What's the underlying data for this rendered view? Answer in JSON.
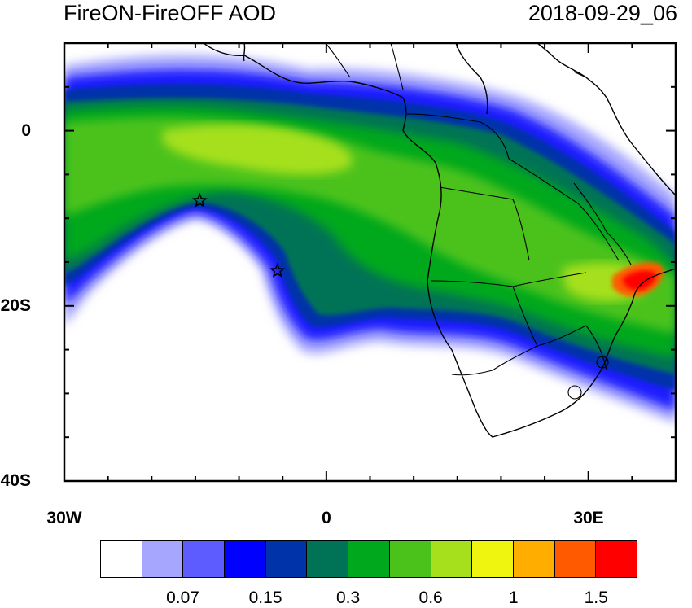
{
  "title_left": "FireON-FireOFF AOD",
  "title_right": "2018-09-29_06",
  "x_axis": {
    "labels": [
      "30W",
      "0",
      "30E"
    ],
    "values": [
      -30,
      0,
      30
    ],
    "range": [
      -30,
      40
    ]
  },
  "y_axis": {
    "labels": [
      "0",
      "20S",
      "40S"
    ],
    "values": [
      0,
      -20,
      -40
    ],
    "range": [
      -40,
      10
    ]
  },
  "colorbar": {
    "colors": [
      "#ffffff",
      "#a6a6ff",
      "#5c5cff",
      "#0000ff",
      "#0033aa",
      "#007357",
      "#00a81e",
      "#4bc21b",
      "#a6e01c",
      "#f0f50f",
      "#ffae00",
      "#ff5a00",
      "#ff0000"
    ],
    "labels": [
      "0.07",
      "0.15",
      "0.3",
      "0.6",
      "1",
      "1.5"
    ],
    "label_after_cell": [
      2,
      4,
      6,
      8,
      10,
      12
    ]
  },
  "markers": [
    {
      "type": "star",
      "lon": -14.5,
      "lat": -8
    },
    {
      "type": "star",
      "lon": -5.6,
      "lat": -16
    }
  ],
  "colors": {
    "ocean": "#ffffff",
    "border": "#000000"
  }
}
